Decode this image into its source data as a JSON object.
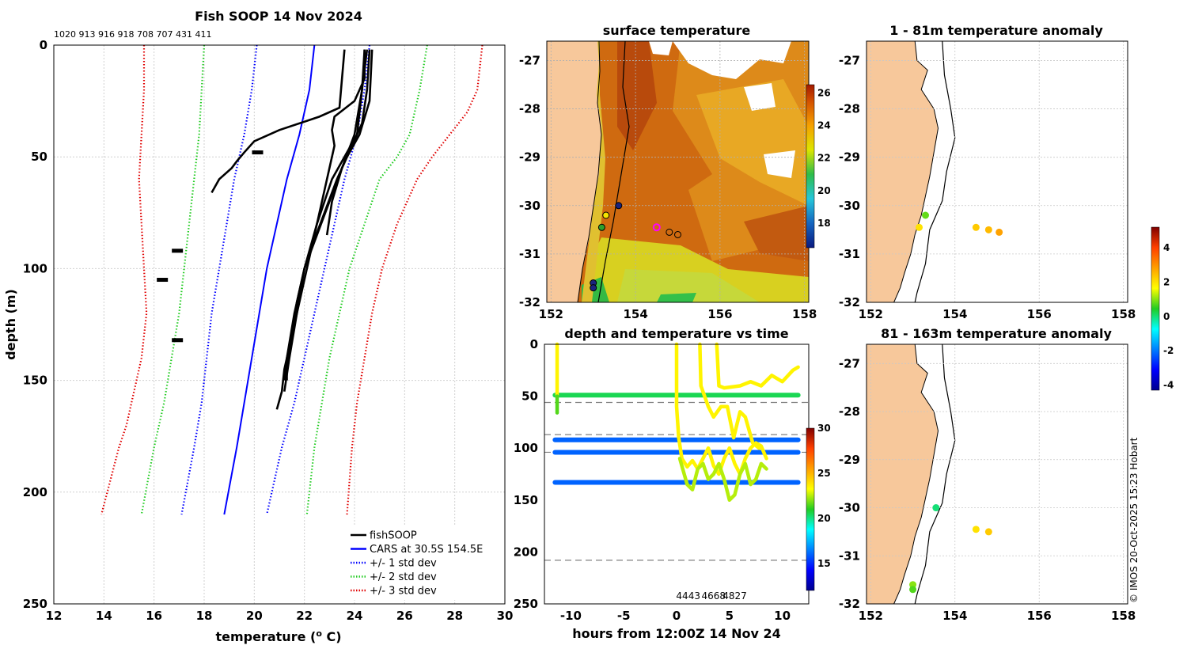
{
  "colors": {
    "land": "#f7c89b",
    "grid": "#d0d0d0",
    "dash": "#808080",
    "black": "#000000",
    "blue": "#0000ff",
    "green": "#22cc22",
    "red": "#e00000"
  },
  "chart_data": [
    {
      "id": "profile",
      "type": "line",
      "title": "Fish SOOP 14 Nov 2024",
      "top_note": "1020 913 916 918 708 707 431 411",
      "xlabel": "temperature (",
      "xlabel_sup": "o",
      "xlabel_end": " C)",
      "ylabel": "depth (m)",
      "xlim": [
        12,
        30
      ],
      "ylim": [
        0,
        250
      ],
      "xticks": [
        12,
        14,
        16,
        18,
        20,
        22,
        24,
        26,
        28,
        30
      ],
      "yticks": [
        0,
        50,
        100,
        150,
        200,
        250
      ],
      "legend": {
        "position": "bottom-right",
        "entries": [
          {
            "label": "fishSOOP",
            "color": "#000000",
            "style": "solid"
          },
          {
            "label": "CARS at 30.5S 154.5E",
            "color": "#0000ff",
            "style": "solid"
          },
          {
            "label": "+/- 1 std dev",
            "color": "#0000ff",
            "style": "dotted"
          },
          {
            "label": "+/- 2 std dev",
            "color": "#22cc22",
            "style": "dotted"
          },
          {
            "label": "+/- 3 std dev",
            "color": "#e00000",
            "style": "dotted"
          }
        ]
      },
      "series": [
        {
          "name": "CARS",
          "color": "#0000ff",
          "style": "solid",
          "depth": [
            0,
            20,
            40,
            60,
            80,
            100,
            120,
            140,
            160,
            180,
            210
          ],
          "temp": [
            22.4,
            22.2,
            21.8,
            21.3,
            20.9,
            20.5,
            20.2,
            19.9,
            19.6,
            19.3,
            18.8
          ]
        },
        {
          "name": "+1 std",
          "color": "#0000ff",
          "style": "dotted",
          "depth": [
            0,
            20,
            40,
            60,
            80,
            100,
            120,
            140,
            160,
            180,
            210
          ],
          "temp": [
            24.6,
            24.4,
            24.1,
            23.6,
            23.2,
            22.8,
            22.4,
            22,
            21.6,
            21.1,
            20.5
          ]
        },
        {
          "name": "-1 std",
          "color": "#0000ff",
          "style": "dotted",
          "depth": [
            0,
            20,
            40,
            50,
            60,
            80,
            100,
            120,
            140,
            160,
            180,
            210
          ],
          "temp": [
            20.1,
            19.9,
            19.6,
            19.4,
            19.2,
            18.9,
            18.6,
            18.3,
            18.1,
            17.9,
            17.6,
            17.1
          ]
        },
        {
          "name": "+2 std",
          "color": "#22cc22",
          "style": "dotted",
          "depth": [
            0,
            20,
            40,
            50,
            60,
            80,
            100,
            120,
            140,
            160,
            180,
            210
          ],
          "temp": [
            26.9,
            26.6,
            26.2,
            25.7,
            25.0,
            24.4,
            23.8,
            23.4,
            23,
            22.7,
            22.4,
            22.1
          ]
        },
        {
          "name": "-2 std",
          "color": "#22cc22",
          "style": "dotted",
          "depth": [
            0,
            20,
            40,
            50,
            60,
            80,
            100,
            120,
            140,
            160,
            180,
            210
          ],
          "temp": [
            18,
            17.9,
            17.8,
            17.7,
            17.6,
            17.4,
            17.2,
            17.0,
            16.7,
            16.4,
            16.0,
            15.5
          ]
        },
        {
          "name": "+3 std",
          "color": "#e00000",
          "style": "dotted",
          "depth": [
            0,
            20,
            30,
            40,
            50,
            60,
            80,
            100,
            120,
            140,
            160,
            180,
            210
          ],
          "temp": [
            29.1,
            28.9,
            28.5,
            27.8,
            27.1,
            26.5,
            25.7,
            25.1,
            24.7,
            24.4,
            24.1,
            23.9,
            23.7
          ]
        },
        {
          "name": "-3 std",
          "color": "#e00000",
          "style": "dotted",
          "depth": [
            0,
            20,
            40,
            60,
            80,
            100,
            120,
            140,
            160,
            170,
            180,
            210
          ],
          "temp": [
            15.6,
            15.6,
            15.5,
            15.4,
            15.5,
            15.6,
            15.7,
            15.5,
            15.1,
            14.9,
            14.6,
            13.9
          ]
        },
        {
          "name": "fishSOOP 1",
          "color": "#000000",
          "style": "solid",
          "depth": [
            2,
            15,
            28,
            32,
            38,
            43,
            48,
            52,
            55,
            60,
            66
          ],
          "temp": [
            23.6,
            23.5,
            23.4,
            22.6,
            21.0,
            20.0,
            19.6,
            19.3,
            19.1,
            18.6,
            18.3
          ]
        },
        {
          "name": "fishSOOP 2",
          "color": "#000000",
          "style": "solid",
          "depth": [
            2,
            15,
            25,
            32,
            38,
            45,
            55,
            70,
            85,
            100,
            115,
            130,
            145,
            155,
            163
          ],
          "temp": [
            24.4,
            24.4,
            24.0,
            23.2,
            23.1,
            23.2,
            23.0,
            22.7,
            22.4,
            22.0,
            21.7,
            21.5,
            21.2,
            21.1,
            20.9
          ]
        },
        {
          "name": "fishSOOP 3",
          "color": "#000000",
          "style": "solid",
          "depth": [
            2,
            20,
            35,
            45,
            55,
            70,
            85,
            100,
            120,
            140,
            155
          ],
          "temp": [
            24.6,
            24.5,
            24.3,
            23.9,
            23.5,
            23.0,
            22.5,
            22.0,
            21.7,
            21.4,
            21.2
          ]
        },
        {
          "name": "fishSOOP 4",
          "color": "#000000",
          "style": "solid",
          "depth": [
            2,
            25,
            40,
            50,
            60,
            75,
            90,
            110,
            130,
            150
          ],
          "temp": [
            24.7,
            24.6,
            24.2,
            23.7,
            23.3,
            22.8,
            22.3,
            21.9,
            21.5,
            21.2
          ]
        },
        {
          "name": "fishSOOP 5",
          "color": "#000000",
          "style": "solid",
          "depth": [
            2,
            20,
            40,
            55,
            70,
            85
          ],
          "temp": [
            24.5,
            24.3,
            24.0,
            23.5,
            23.1,
            22.9
          ]
        },
        {
          "name": "fishSOOP 6",
          "color": "#000000",
          "style": "solid",
          "depth": [
            2,
            20,
            40,
            60,
            80,
            100,
            120,
            140,
            150
          ],
          "temp": [
            24.4,
            24.3,
            24.1,
            23.1,
            22.5,
            22.0,
            21.6,
            21.3,
            21.3
          ]
        }
      ],
      "blobs": [
        {
          "temp": 20.1,
          "depth": 48
        },
        {
          "temp": 16.9,
          "depth": 92
        },
        {
          "temp": 16.3,
          "depth": 105
        },
        {
          "temp": 16.9,
          "depth": 132
        }
      ]
    },
    {
      "id": "sst",
      "type": "heatmap",
      "title": "surface temperature",
      "xlim": [
        151.9,
        158.1
      ],
      "ylim": [
        -32,
        -26.6
      ],
      "xticks": [
        152,
        154,
        156,
        158
      ],
      "yticks": [
        -27,
        -28,
        -29,
        -30,
        -31,
        -32
      ],
      "colorbar": {
        "min": 16.5,
        "max": 26.5,
        "ticks": [
          18,
          20,
          22,
          24,
          26
        ]
      },
      "stations": [
        {
          "lon": 153.6,
          "lat": -30.0,
          "fill": "#1a237e"
        },
        {
          "lon": 153.3,
          "lat": -30.2,
          "fill": "#f5e400"
        },
        {
          "lon": 153.2,
          "lat": -30.45,
          "fill": "#2ca02c"
        },
        {
          "lon": 153.0,
          "lat": -31.6,
          "fill": "#1a237e"
        },
        {
          "lon": 153.0,
          "lat": -31.7,
          "fill": "#1a237e"
        },
        {
          "lon": 154.8,
          "lat": -30.55,
          "fill": "none"
        },
        {
          "lon": 155.0,
          "lat": -30.6,
          "fill": "none"
        },
        {
          "lon": 154.5,
          "lat": -30.45,
          "fill": "magenta"
        }
      ]
    },
    {
      "id": "time",
      "type": "scatter",
      "title": "depth and temperature vs time",
      "xlabel": "hours from 12:00Z 14 Nov 24",
      "xlim": [
        -12.5,
        12.5
      ],
      "ylim": [
        0,
        250
      ],
      "xticks": [
        -10,
        -5,
        0,
        5,
        10
      ],
      "yticks": [
        0,
        50,
        100,
        150,
        200,
        250
      ],
      "hlines": [
        56,
        87,
        104,
        208
      ],
      "ids": [
        {
          "label": "4443",
          "x": 1.1
        },
        {
          "label": "4668",
          "x": 3.5
        },
        {
          "label": "4827",
          "x": 5.5
        }
      ],
      "colorbar": {
        "min": 12,
        "max": 30,
        "ticks": [
          15,
          20,
          25,
          30
        ]
      },
      "tracks": [
        {
          "temp": 20.5,
          "x": [
            -11.5,
            11.5
          ],
          "y": [
            49,
            49
          ]
        },
        {
          "temp": 16,
          "x": [
            -11.5,
            11.5
          ],
          "y": [
            92,
            92
          ]
        },
        {
          "temp": 16,
          "x": [
            -11.5,
            11.5
          ],
          "y": [
            104,
            104
          ]
        },
        {
          "temp": 16,
          "x": [
            -11.5,
            11.5
          ],
          "y": [
            133,
            133
          ]
        },
        {
          "temp": 23.5,
          "x": [
            -11.3,
            -11.3
          ],
          "y": [
            0,
            50
          ]
        },
        {
          "temp": 21.5,
          "x": [
            -11.3,
            -11.3
          ],
          "y": [
            50,
            66
          ]
        },
        {
          "temp": 23.5,
          "x": [
            0,
            0,
            0.2,
            0.5,
            1,
            1.5,
            2,
            2.5,
            3,
            3.5,
            4,
            4.5,
            5,
            5.5,
            6,
            6.5,
            7,
            7.5,
            8,
            8.5
          ],
          "y": [
            0,
            60,
            90,
            110,
            118,
            112,
            120,
            110,
            100,
            117,
            125,
            110,
            100,
            115,
            125,
            110,
            100,
            95,
            98,
            110
          ]
        },
        {
          "temp": 22.5,
          "x": [
            0.3,
            1,
            1.5,
            2,
            2.5,
            3,
            3.5,
            4,
            4.5,
            5,
            5.5,
            6,
            6.5,
            7,
            7.5,
            8,
            8.5
          ],
          "y": [
            110,
            135,
            140,
            120,
            115,
            130,
            125,
            115,
            130,
            150,
            145,
            125,
            115,
            135,
            130,
            115,
            120
          ]
        },
        {
          "temp": 23.5,
          "x": [
            2.2,
            2.3,
            3,
            3.5,
            4.2,
            4.8,
            5,
            5.4,
            6,
            6.5,
            7.2,
            7.8
          ],
          "y": [
            0,
            40,
            60,
            70,
            60,
            60,
            70,
            90,
            65,
            70,
            95,
            100
          ]
        },
        {
          "temp": 23.5,
          "x": [
            3.8,
            4,
            4.5,
            6,
            7,
            8,
            9,
            10,
            11,
            11.5
          ],
          "y": [
            0,
            40,
            42,
            40,
            36,
            40,
            30,
            36,
            25,
            22
          ]
        }
      ]
    },
    {
      "id": "anom1",
      "type": "scatter",
      "title": "1 - 81m temperature anomaly",
      "xlim": [
        151.9,
        158.1
      ],
      "ylim": [
        -32,
        -26.6
      ],
      "xticks": [
        152,
        154,
        156,
        158
      ],
      "yticks": [
        -27,
        -28,
        -29,
        -30,
        -31,
        -32
      ],
      "points": [
        {
          "lon": 153.3,
          "lat": -30.2,
          "anom": 0.8
        },
        {
          "lon": 153.15,
          "lat": -30.45,
          "anom": 2.0
        },
        {
          "lon": 154.5,
          "lat": -30.45,
          "anom": 2.3
        },
        {
          "lon": 154.8,
          "lat": -30.5,
          "anom": 2.5
        },
        {
          "lon": 155.05,
          "lat": -30.55,
          "anom": 2.8
        }
      ]
    },
    {
      "id": "anom2",
      "type": "scatter",
      "title": "81 - 163m temperature anomaly",
      "xlim": [
        151.9,
        158.1
      ],
      "ylim": [
        -32,
        -26.6
      ],
      "xticks": [
        152,
        154,
        156,
        158
      ],
      "yticks": [
        -27,
        -28,
        -29,
        -30,
        -31,
        -32
      ],
      "points": [
        {
          "lon": 153.55,
          "lat": -30.0,
          "anom": 0.0
        },
        {
          "lon": 154.5,
          "lat": -30.45,
          "anom": 2.0
        },
        {
          "lon": 154.8,
          "lat": -30.5,
          "anom": 2.3
        },
        {
          "lon": 153.0,
          "lat": -31.6,
          "anom": 1.0
        },
        {
          "lon": 153.0,
          "lat": -31.7,
          "anom": 0.7
        }
      ]
    }
  ],
  "anomaly_colorbar": {
    "min": -4.3,
    "max": 5.2,
    "ticks": [
      4,
      2,
      0,
      -2,
      -4
    ]
  },
  "credit": "© IMOS 20-Oct-2025 15:23 Hobart"
}
